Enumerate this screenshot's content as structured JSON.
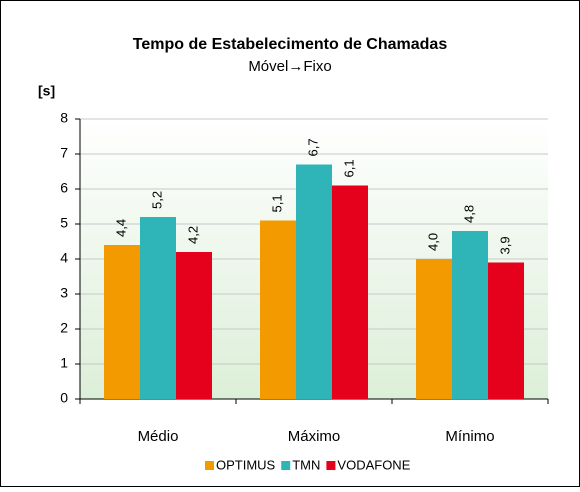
{
  "chart_data": {
    "type": "bar",
    "title": "Tempo de Estabelecimento de Chamadas",
    "subtitle": "Móvel→Fixo",
    "y_label": "[s]",
    "categories": [
      "Médio",
      "Máximo",
      "Mínimo"
    ],
    "series": [
      {
        "name": "OPTIMUS",
        "color": "#f39a00",
        "values": [
          4.4,
          5.1,
          4.0
        ],
        "value_labels": [
          "4,4",
          "5,1",
          "4,0"
        ]
      },
      {
        "name": "TMN",
        "color": "#2fb4b8",
        "values": [
          5.2,
          6.7,
          4.8
        ],
        "value_labels": [
          "5,2",
          "6,7",
          "4,8"
        ]
      },
      {
        "name": "VODAFONE",
        "color": "#e5001b",
        "values": [
          4.2,
          6.1,
          3.9
        ],
        "value_labels": [
          "4,2",
          "6,1",
          "3,9"
        ]
      }
    ],
    "ylim": [
      0,
      8
    ],
    "yticks": [
      0,
      1,
      2,
      3,
      4,
      5,
      6,
      7,
      8
    ],
    "grid": true,
    "legend": "bottom"
  }
}
